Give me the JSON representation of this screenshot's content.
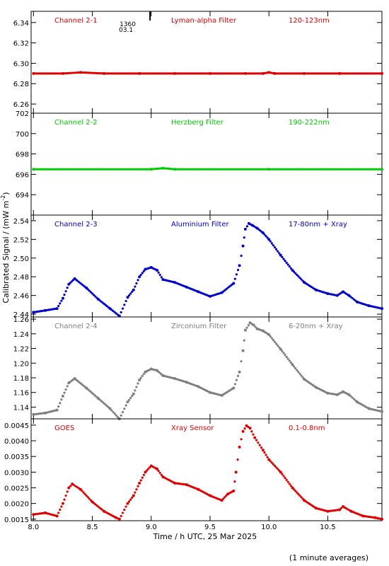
{
  "chart_data": [
    {
      "type": "scatter",
      "panel_title": "Channel 2-1",
      "filter": "Lyman-alpha Filter",
      "band": "120-123nm",
      "color": "#e00000",
      "ylim": [
        6.251,
        6.351
      ],
      "yticks": [
        "6.26",
        "6.28",
        "6.30",
        "6.32",
        "6.34"
      ],
      "yticks_values": [
        6.26,
        6.28,
        6.3,
        6.32,
        6.34
      ],
      "annotation": {
        "text_1": "1360",
        "text_2": "03.1",
        "x": 8.99
      },
      "series": [
        {
          "x": [
            8.0,
            8.25,
            8.4,
            8.6,
            8.9,
            9.2,
            9.5,
            9.8,
            9.95,
            10.0,
            10.05,
            10.3,
            10.6,
            10.96
          ],
          "values": [
            6.29,
            6.29,
            6.291,
            6.29,
            6.29,
            6.29,
            6.29,
            6.29,
            6.29,
            6.291,
            6.29,
            6.29,
            6.29,
            6.29
          ]
        }
      ]
    },
    {
      "type": "scatter",
      "panel_title": "Channel 2-2",
      "filter": "Herzberg Filter",
      "band": "190-222nm",
      "color": "#00cc00",
      "ylim": [
        692.0,
        702.0
      ],
      "yticks": [
        "694",
        "696",
        "698",
        "700",
        "702"
      ],
      "yticks_values": [
        694,
        696,
        698,
        700,
        702
      ],
      "series": [
        {
          "x": [
            8.0,
            9.0,
            9.1,
            9.2,
            10.0,
            10.96
          ],
          "values": [
            696.5,
            696.5,
            696.6,
            696.5,
            696.5,
            696.5
          ]
        }
      ]
    },
    {
      "type": "scatter",
      "panel_title": "Channel 2-3",
      "filter": "Aluminium Filter",
      "band": "17-80nm + Xray",
      "color": "#0000cc",
      "ylim": [
        2.437,
        2.546
      ],
      "yticks": [
        "2.44",
        "2.46",
        "2.48",
        "2.50",
        "2.52",
        "2.54"
      ],
      "yticks_values": [
        2.44,
        2.46,
        2.48,
        2.5,
        2.52,
        2.54
      ],
      "series": [
        {
          "x": [
            8.0,
            8.1,
            8.2,
            8.25,
            8.3,
            8.35,
            8.45,
            8.55,
            8.65,
            8.73,
            8.8,
            8.85,
            8.9,
            8.95,
            9.0,
            9.05,
            9.1,
            9.2,
            9.3,
            9.4,
            9.5,
            9.6,
            9.7,
            9.75,
            9.78,
            9.8,
            9.83,
            9.86,
            9.9,
            9.95,
            10.0,
            10.1,
            10.2,
            10.3,
            10.4,
            10.5,
            10.58,
            10.63,
            10.68,
            10.75,
            10.85,
            10.96
          ],
          "values": [
            2.442,
            2.444,
            2.446,
            2.457,
            2.472,
            2.478,
            2.468,
            2.456,
            2.446,
            2.438,
            2.458,
            2.466,
            2.48,
            2.488,
            2.49,
            2.487,
            2.477,
            2.474,
            2.469,
            2.464,
            2.459,
            2.463,
            2.473,
            2.492,
            2.513,
            2.531,
            2.537,
            2.535,
            2.532,
            2.527,
            2.52,
            2.503,
            2.487,
            2.474,
            2.466,
            2.462,
            2.46,
            2.464,
            2.46,
            2.453,
            2.449,
            2.446
          ]
        }
      ]
    },
    {
      "type": "scatter",
      "panel_title": "Channel 2-4",
      "filter": "Zirconium Filter",
      "band": "6-20nm + Xray",
      "color": "#7f7f7f",
      "ylim": [
        1.124,
        1.263
      ],
      "yticks": [
        "1.14",
        "1.16",
        "1.18",
        "1.20",
        "1.22",
        "1.24",
        "1.26"
      ],
      "yticks_values": [
        1.14,
        1.16,
        1.18,
        1.2,
        1.22,
        1.24,
        1.26
      ],
      "series": [
        {
          "x": [
            8.0,
            8.1,
            8.2,
            8.25,
            8.3,
            8.35,
            8.45,
            8.55,
            8.65,
            8.73,
            8.8,
            8.85,
            8.9,
            8.95,
            9.0,
            9.05,
            9.1,
            9.2,
            9.3,
            9.4,
            9.5,
            9.6,
            9.7,
            9.75,
            9.78,
            9.8,
            9.84,
            9.87,
            9.9,
            9.95,
            10.0,
            10.1,
            10.2,
            10.3,
            10.4,
            10.5,
            10.58,
            10.63,
            10.68,
            10.75,
            10.85,
            10.96
          ],
          "values": [
            1.13,
            1.132,
            1.136,
            1.155,
            1.173,
            1.179,
            1.166,
            1.152,
            1.138,
            1.124,
            1.147,
            1.158,
            1.177,
            1.188,
            1.192,
            1.19,
            1.183,
            1.179,
            1.174,
            1.168,
            1.16,
            1.156,
            1.166,
            1.188,
            1.217,
            1.245,
            1.255,
            1.252,
            1.247,
            1.244,
            1.239,
            1.219,
            1.198,
            1.178,
            1.167,
            1.159,
            1.157,
            1.161,
            1.157,
            1.147,
            1.138,
            1.134
          ]
        }
      ]
    },
    {
      "type": "scatter",
      "panel_title": "GOES",
      "filter": "Xray Sensor",
      "band": "0.1-0.8nm",
      "color": "#e00000",
      "xlabel": "Time / h UTC, 25 Mar 2025",
      "xlim": [
        7.98,
        10.96
      ],
      "xticks": [
        "8.0",
        "8.5",
        "9.0",
        "9.5",
        "10.0",
        "10.5"
      ],
      "xticks_values": [
        8.0,
        8.5,
        9.0,
        9.5,
        10.0,
        10.5
      ],
      "ylim": [
        0.00145,
        0.0047
      ],
      "yticks": [
        "0.0015",
        "0.0020",
        "0.0025",
        "0.0030",
        "0.0035",
        "0.0040",
        "0.0045"
      ],
      "yticks_values": [
        0.0015,
        0.002,
        0.0025,
        0.003,
        0.0035,
        0.004,
        0.0045
      ],
      "series": [
        {
          "x": [
            8.0,
            8.1,
            8.2,
            8.25,
            8.3,
            8.33,
            8.4,
            8.5,
            8.6,
            8.7,
            8.73,
            8.8,
            8.85,
            8.9,
            8.95,
            9.0,
            9.05,
            9.1,
            9.2,
            9.3,
            9.4,
            9.5,
            9.6,
            9.65,
            9.7,
            9.72,
            9.75,
            9.78,
            9.81,
            9.84,
            9.88,
            9.95,
            10.0,
            10.1,
            10.2,
            10.3,
            10.4,
            10.5,
            10.6,
            10.63,
            10.7,
            10.8,
            10.9,
            10.96
          ],
          "values": [
            0.00165,
            0.0017,
            0.0016,
            0.002,
            0.0025,
            0.00262,
            0.00245,
            0.00205,
            0.00175,
            0.00155,
            0.0015,
            0.002,
            0.00225,
            0.00265,
            0.003,
            0.0032,
            0.0031,
            0.00285,
            0.00265,
            0.0026,
            0.00245,
            0.00225,
            0.0021,
            0.0023,
            0.0024,
            0.003,
            0.0038,
            0.0043,
            0.00448,
            0.0044,
            0.0041,
            0.0037,
            0.0034,
            0.003,
            0.0025,
            0.0021,
            0.00185,
            0.00175,
            0.0018,
            0.0019,
            0.00175,
            0.0016,
            0.00155,
            0.0015
          ]
        }
      ]
    }
  ],
  "ylabel": "Calibrated Signal / (mW m",
  "ylabel_sup": "-2",
  "ylabel_close": ")",
  "footer": {
    "note": "(1 minute averages)"
  }
}
